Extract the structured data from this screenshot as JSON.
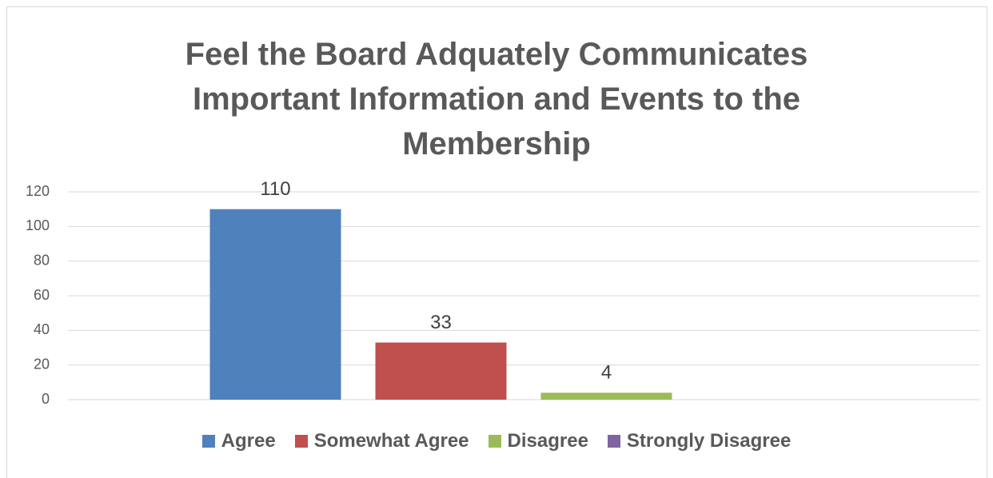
{
  "chart_data": {
    "type": "bar",
    "title": "Feel the Board Adquately Communicates Important Information and Events to the Membership",
    "categories": [
      null
    ],
    "series": [
      {
        "name": "Agree",
        "color": "#4f81bd",
        "values": [
          110
        ]
      },
      {
        "name": "Somewhat Agree",
        "color": "#c0504d",
        "values": [
          33
        ]
      },
      {
        "name": "Disagree",
        "color": "#9bbb59",
        "values": [
          4
        ]
      },
      {
        "name": "Strongly Disagree",
        "color": "#8064a2",
        "values": [
          null
        ]
      }
    ],
    "ylim": [
      0,
      120
    ],
    "yticks": [
      0,
      20,
      40,
      60,
      80,
      100,
      120
    ],
    "grid": true,
    "legend": "bottom"
  }
}
